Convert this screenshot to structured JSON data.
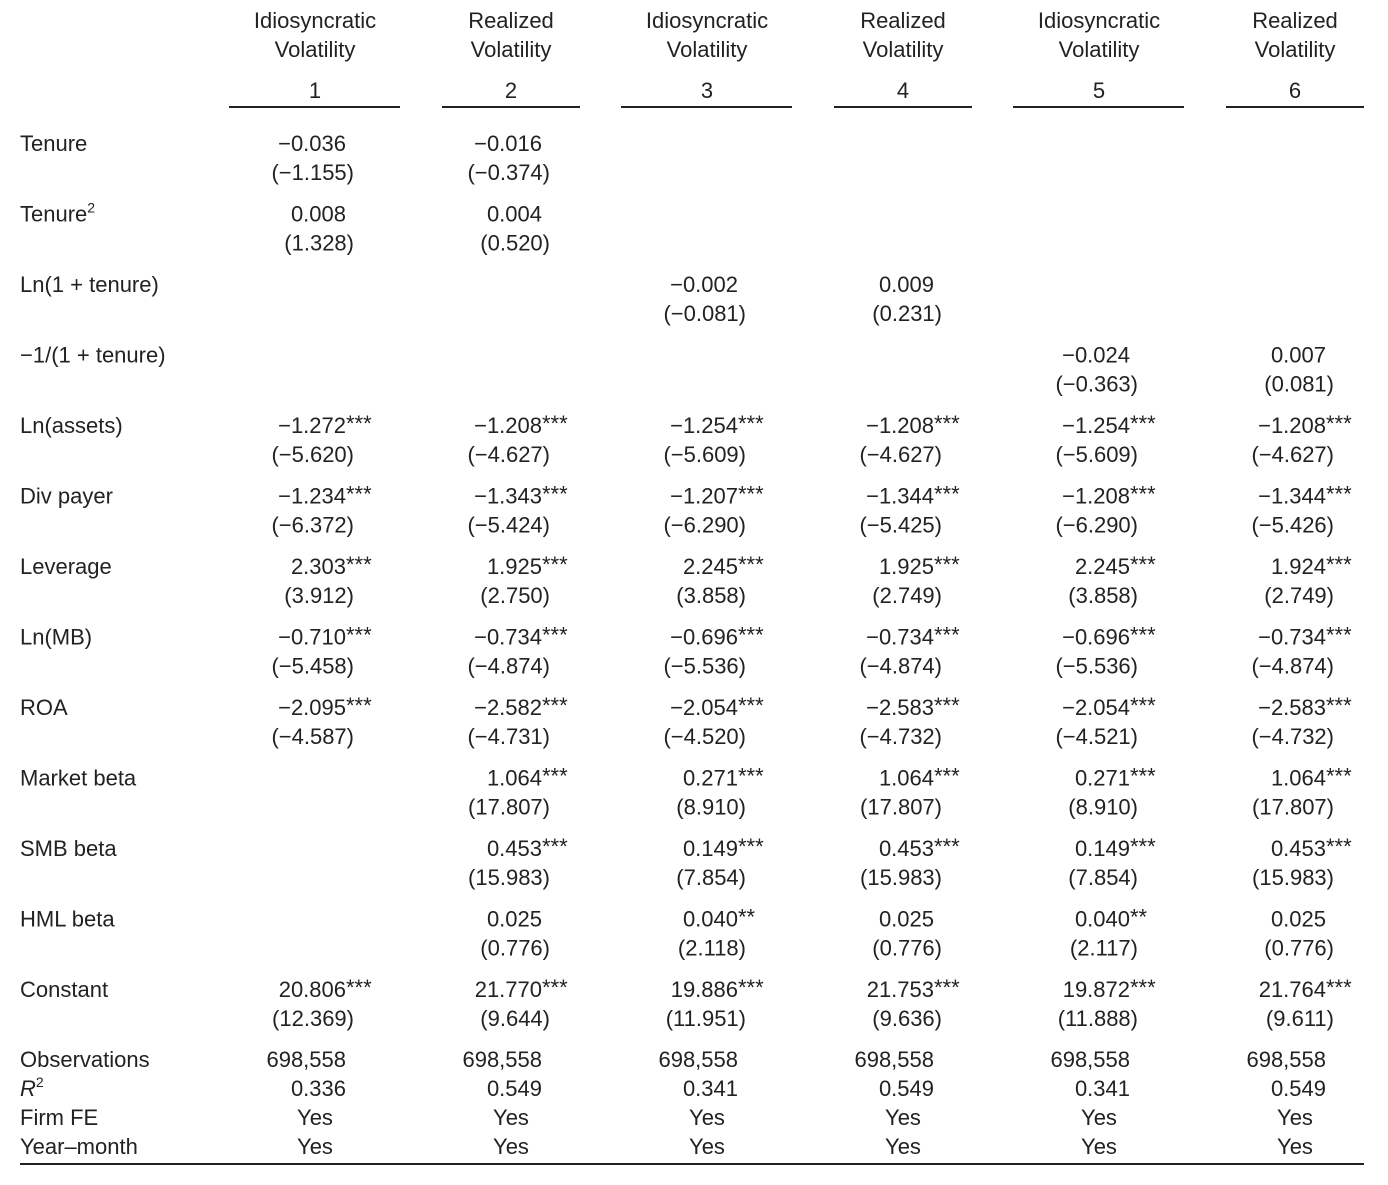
{
  "table": {
    "columns": [
      {
        "header": [
          "Idiosyncratic",
          "Volatility"
        ],
        "number": "1"
      },
      {
        "header": [
          "Realized",
          "Volatility"
        ],
        "number": "2"
      },
      {
        "header": [
          "Idiosyncratic",
          "Volatility"
        ],
        "number": "3"
      },
      {
        "header": [
          "Realized",
          "Volatility"
        ],
        "number": "4"
      },
      {
        "header": [
          "Idiosyncratic",
          "Volatility"
        ],
        "number": "5"
      },
      {
        "header": [
          "Realized",
          "Volatility"
        ],
        "number": "6"
      }
    ],
    "rows": [
      {
        "label": "Tenure",
        "cells": [
          {
            "coef": "−0.036",
            "t": "(−1.155)"
          },
          {
            "coef": "−0.016",
            "t": "(−0.374)"
          },
          null,
          null,
          null,
          null
        ]
      },
      {
        "label": "Tenure",
        "sup": "2",
        "cells": [
          {
            "coef": "0.008",
            "t": "(1.328)"
          },
          {
            "coef": "0.004",
            "t": "(0.520)"
          },
          null,
          null,
          null,
          null
        ]
      },
      {
        "label": "Ln(1 + tenure)",
        "cells": [
          null,
          null,
          {
            "coef": "−0.002",
            "t": "(−0.081)"
          },
          {
            "coef": "0.009",
            "t": "(0.231)"
          },
          null,
          null
        ]
      },
      {
        "label": "−1/(1 + tenure)",
        "cells": [
          null,
          null,
          null,
          null,
          {
            "coef": "−0.024",
            "t": "(−0.363)"
          },
          {
            "coef": "0.007",
            "t": "(0.081)"
          }
        ]
      },
      {
        "label": "Ln(assets)",
        "cells": [
          {
            "coef": "−1.272",
            "stars": "***",
            "t": "(−5.620)"
          },
          {
            "coef": "−1.208",
            "stars": "***",
            "t": "(−4.627)"
          },
          {
            "coef": "−1.254",
            "stars": "***",
            "t": "(−5.609)"
          },
          {
            "coef": "−1.208",
            "stars": "***",
            "t": "(−4.627)"
          },
          {
            "coef": "−1.254",
            "stars": "***",
            "t": "(−5.609)"
          },
          {
            "coef": "−1.208",
            "stars": "***",
            "t": "(−4.627)"
          }
        ]
      },
      {
        "label": "Div payer",
        "cells": [
          {
            "coef": "−1.234",
            "stars": "***",
            "t": "(−6.372)"
          },
          {
            "coef": "−1.343",
            "stars": "***",
            "t": "(−5.424)"
          },
          {
            "coef": "−1.207",
            "stars": "***",
            "t": "(−6.290)"
          },
          {
            "coef": "−1.344",
            "stars": "***",
            "t": "(−5.425)"
          },
          {
            "coef": "−1.208",
            "stars": "***",
            "t": "(−6.290)"
          },
          {
            "coef": "−1.344",
            "stars": "***",
            "t": "(−5.426)"
          }
        ]
      },
      {
        "label": "Leverage",
        "cells": [
          {
            "coef": "2.303",
            "stars": "***",
            "t": "(3.912)"
          },
          {
            "coef": "1.925",
            "stars": "***",
            "t": "(2.750)"
          },
          {
            "coef": "2.245",
            "stars": "***",
            "t": "(3.858)"
          },
          {
            "coef": "1.925",
            "stars": "***",
            "t": "(2.749)"
          },
          {
            "coef": "2.245",
            "stars": "***",
            "t": "(3.858)"
          },
          {
            "coef": "1.924",
            "stars": "***",
            "t": "(2.749)"
          }
        ]
      },
      {
        "label": "Ln(MB)",
        "cells": [
          {
            "coef": "−0.710",
            "stars": "***",
            "t": "(−5.458)"
          },
          {
            "coef": "−0.734",
            "stars": "***",
            "t": "(−4.874)"
          },
          {
            "coef": "−0.696",
            "stars": "***",
            "t": "(−5.536)"
          },
          {
            "coef": "−0.734",
            "stars": "***",
            "t": "(−4.874)"
          },
          {
            "coef": "−0.696",
            "stars": "***",
            "t": "(−5.536)"
          },
          {
            "coef": "−0.734",
            "stars": "***",
            "t": "(−4.874)"
          }
        ]
      },
      {
        "label": "ROA",
        "cells": [
          {
            "coef": "−2.095",
            "stars": "***",
            "t": "(−4.587)"
          },
          {
            "coef": "−2.582",
            "stars": "***",
            "t": "(−4.731)"
          },
          {
            "coef": "−2.054",
            "stars": "***",
            "t": "(−4.520)"
          },
          {
            "coef": "−2.583",
            "stars": "***",
            "t": "(−4.732)"
          },
          {
            "coef": "−2.054",
            "stars": "***",
            "t": "(−4.521)"
          },
          {
            "coef": "−2.583",
            "stars": "***",
            "t": "(−4.732)"
          }
        ]
      },
      {
        "label": "Market beta",
        "cells": [
          null,
          {
            "coef": "1.064",
            "stars": "***",
            "t": "(17.807)"
          },
          {
            "coef": "0.271",
            "stars": "***",
            "t": "(8.910)"
          },
          {
            "coef": "1.064",
            "stars": "***",
            "t": "(17.807)"
          },
          {
            "coef": "0.271",
            "stars": "***",
            "t": "(8.910)"
          },
          {
            "coef": "1.064",
            "stars": "***",
            "t": "(17.807)"
          }
        ]
      },
      {
        "label": "SMB beta",
        "cells": [
          null,
          {
            "coef": "0.453",
            "stars": "***",
            "t": "(15.983)"
          },
          {
            "coef": "0.149",
            "stars": "***",
            "t": "(7.854)"
          },
          {
            "coef": "0.453",
            "stars": "***",
            "t": "(15.983)"
          },
          {
            "coef": "0.149",
            "stars": "***",
            "t": "(7.854)"
          },
          {
            "coef": "0.453",
            "stars": "***",
            "t": "(15.983)"
          }
        ]
      },
      {
        "label": "HML beta",
        "cells": [
          null,
          {
            "coef": "0.025",
            "t": "(0.776)"
          },
          {
            "coef": "0.040",
            "stars": "**",
            "t": "(2.118)"
          },
          {
            "coef": "0.025",
            "t": "(0.776)"
          },
          {
            "coef": "0.040",
            "stars": "**",
            "t": "(2.117)"
          },
          {
            "coef": "0.025",
            "t": "(0.776)"
          }
        ]
      },
      {
        "label": "Constant",
        "cells": [
          {
            "coef": "20.806",
            "stars": "***",
            "t": "(12.369)"
          },
          {
            "coef": "21.770",
            "stars": "***",
            "t": "(9.644)"
          },
          {
            "coef": "19.886",
            "stars": "***",
            "t": "(11.951)"
          },
          {
            "coef": "21.753",
            "stars": "***",
            "t": "(9.636)"
          },
          {
            "coef": "19.872",
            "stars": "***",
            "t": "(11.888)"
          },
          {
            "coef": "21.764",
            "stars": "***",
            "t": "(9.611)"
          }
        ]
      }
    ],
    "stats": [
      {
        "label": "Observations",
        "values": [
          "698,558",
          "698,558",
          "698,558",
          "698,558",
          "698,558",
          "698,558"
        ]
      },
      {
        "label": "R",
        "sup": "2",
        "italic": true,
        "values": [
          "0.336",
          "0.549",
          "0.341",
          "0.549",
          "0.341",
          "0.549"
        ]
      },
      {
        "label": "Firm FE",
        "values": [
          "Yes",
          "Yes",
          "Yes",
          "Yes",
          "Yes",
          "Yes"
        ]
      },
      {
        "label": "Year–month",
        "values": [
          "Yes",
          "Yes",
          "Yes",
          "Yes",
          "Yes",
          "Yes"
        ]
      }
    ]
  }
}
